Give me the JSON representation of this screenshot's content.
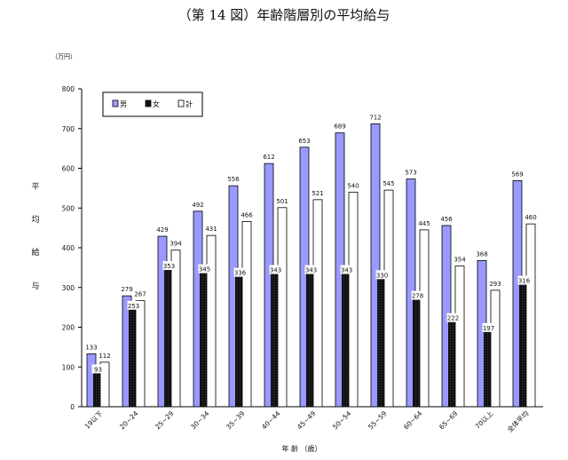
{
  "title": "（第 14 図）年齢階層別の平均給与",
  "chart_data": {
    "type": "bar",
    "title": "（第 14 図）年齢階層別の平均給与",
    "unit": "（万円）",
    "ylabel": "平均給与",
    "xlabel": "年 齢 （歳）",
    "ylim": [
      0,
      800
    ],
    "yticks": [
      0,
      100,
      200,
      300,
      400,
      500,
      600,
      700,
      800
    ],
    "grid": false,
    "legend_position": "top-left",
    "categories": [
      "19以下",
      "20~24",
      "25~29",
      "30~34",
      "35~39",
      "40~44",
      "45~49",
      "50~54",
      "55~59",
      "60~64",
      "65~69",
      "70以上",
      "全体平均"
    ],
    "series": [
      {
        "name": "男",
        "color": "#9999ff",
        "values": [
          133,
          279,
          429,
          492,
          556,
          612,
          653,
          689,
          712,
          573,
          456,
          368,
          569
        ]
      },
      {
        "name": "女",
        "color": "#111111",
        "values": [
          93,
          253,
          353,
          345,
          336,
          343,
          343,
          343,
          330,
          278,
          222,
          197,
          316
        ]
      },
      {
        "name": "計",
        "color": "#ffffff",
        "values": [
          112,
          267,
          394,
          431,
          466,
          501,
          521,
          540,
          545,
          445,
          354,
          293,
          460
        ]
      }
    ]
  }
}
